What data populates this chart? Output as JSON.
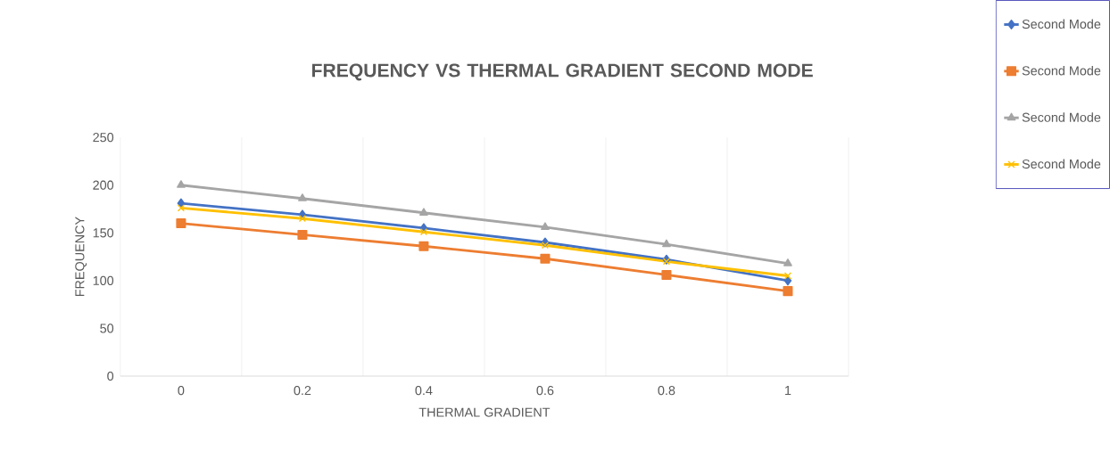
{
  "chart_data": {
    "type": "line",
    "title": "FREQUENCY VS THERMAL GRADIENT SECOND MODE",
    "xlabel": "THERMAL GRADIENT",
    "ylabel": "FREQUENCY",
    "categories": [
      "0",
      "0.2",
      "0.4",
      "0.6",
      "0.8",
      "1"
    ],
    "series": [
      {
        "name": "Second Mode",
        "color": "#4472c4",
        "marker": "diamond",
        "values": [
          181,
          169,
          155,
          140,
          122,
          100
        ]
      },
      {
        "name": "Second Mode",
        "color": "#ed7d31",
        "marker": "square",
        "values": [
          160,
          148,
          136,
          123,
          106,
          89
        ]
      },
      {
        "name": "Second Mode",
        "color": "#a5a5a5",
        "marker": "triangle",
        "values": [
          200,
          186,
          171,
          156,
          138,
          118
        ]
      },
      {
        "name": "Second Mode",
        "color": "#ffc000",
        "marker": "cross",
        "values": [
          176,
          165,
          151,
          137,
          120,
          105
        ]
      }
    ],
    "ylim": [
      0,
      250
    ],
    "yticks": [
      0,
      50,
      100,
      150,
      200,
      250
    ],
    "grid": "x",
    "legend": "right",
    "line_style": "solid"
  }
}
